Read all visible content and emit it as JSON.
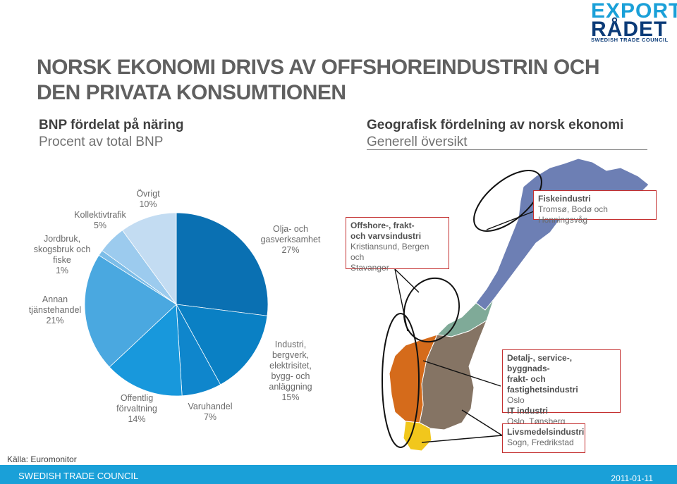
{
  "logo": {
    "line1": "EXPORT",
    "line2": "RÅDET",
    "sub": "SWEDISH TRADE COUNCIL"
  },
  "title": "NORSK EKONOMI DRIVS AV OFFSHOREINDUSTRIN OCH DEN PRIVATA KONSUMTIONEN",
  "left": {
    "heading": "BNP fördelat på näring",
    "subheading": "Procent av total BNP"
  },
  "right": {
    "heading": "Geografisk fördelning av norsk ekonomi",
    "subheading": "Generell översikt"
  },
  "chart_data": {
    "type": "pie",
    "slices": [
      {
        "name": "Olja- och gasverksamhet",
        "label_lines": [
          "Olja- och",
          "gasverksamhet"
        ],
        "value": 27,
        "value_text": "27%",
        "color": "#0a70b2"
      },
      {
        "name": "Industri, bergverk, elektrisitet, bygg- och anläggning",
        "label_lines": [
          "Industri,",
          "bergverk,",
          "elektrisitet,",
          "bygg- och",
          "anläggning"
        ],
        "value": 15,
        "value_text": "15%",
        "color": "#0a80c4"
      },
      {
        "name": "Varuhandel",
        "label_lines": [
          "Varuhandel"
        ],
        "value": 7,
        "value_text": "7%",
        "color": "#0f86cc"
      },
      {
        "name": "Offentlig förvaltning",
        "label_lines": [
          "Offentlig",
          "förvaltning"
        ],
        "value": 14,
        "value_text": "14%",
        "color": "#1898dc"
      },
      {
        "name": "Annan tjänstehandel",
        "label_lines": [
          "Annan",
          "tjänstehandel"
        ],
        "value": 21,
        "value_text": "21%",
        "color": "#4aa8e0"
      },
      {
        "name": "Jordbruk, skogsbruk och fiske",
        "label_lines": [
          "Jordbruk,",
          "skogsbruk och",
          "fiske"
        ],
        "value": 1,
        "value_text": "1%",
        "color": "#7cbde8"
      },
      {
        "name": "Kollektivtrafik",
        "label_lines": [
          "Kollektivtrafik"
        ],
        "value": 5,
        "value_text": "5%",
        "color": "#9ccbee"
      },
      {
        "name": "Övrigt",
        "label_lines": [
          "Övrigt"
        ],
        "value": 10,
        "value_text": "10%",
        "color": "#c3dcf2"
      }
    ]
  },
  "map_boxes": [
    {
      "id": "fish",
      "title": "Fiskeindustri",
      "lines": [
        "Tromsø, Bodø och Honningsvåg"
      ]
    },
    {
      "id": "offshore",
      "title": "Offshore-, frakt-\noch varvsindustri",
      "lines": [
        "Kristiansund, Bergen och",
        "Stavanger"
      ]
    },
    {
      "id": "service",
      "title": "Detalj-, service-, byggnads-\nfrakt- och fastighetsindustri",
      "lines": [
        "Oslo"
      ],
      "title2": "IT industri",
      "lines2": [
        "Oslo, Tønsberg"
      ]
    },
    {
      "id": "food",
      "title": "Livsmedelsindustri",
      "lines": [
        "Sogn, Fredrikstad"
      ]
    }
  ],
  "source": "Källa: Euromonitor",
  "footer": {
    "left": "SWEDISH TRADE COUNCIL",
    "date": "2011-01-11"
  },
  "colors": {
    "accent": "#1aa0d8",
    "box_border": "#c43030",
    "map_north": "#6d7fb4",
    "map_mid": "#7faa98",
    "map_south": "#857464",
    "map_west": "#d56b1b",
    "map_south_tip": "#f1c71c"
  }
}
